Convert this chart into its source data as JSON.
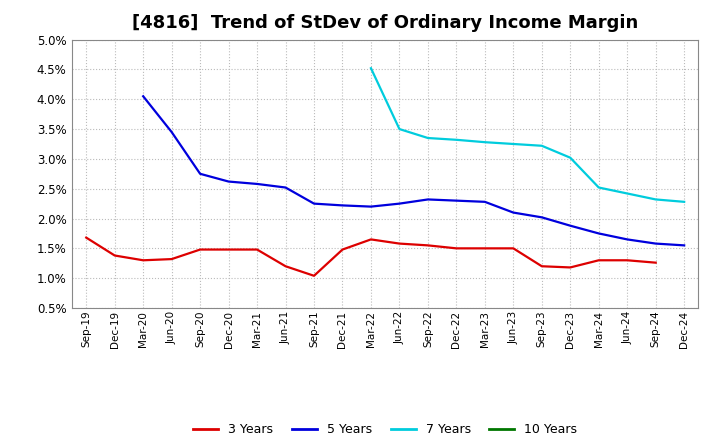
{
  "title": "[4816]  Trend of StDev of Ordinary Income Margin",
  "title_fontsize": 13,
  "background_color": "#ffffff",
  "plot_background": "#ffffff",
  "grid_color": "#aaaaaa",
  "xlabels": [
    "Sep-19",
    "Dec-19",
    "Mar-20",
    "Jun-20",
    "Sep-20",
    "Dec-20",
    "Mar-21",
    "Jun-21",
    "Sep-21",
    "Dec-21",
    "Mar-22",
    "Jun-22",
    "Sep-22",
    "Dec-22",
    "Mar-23",
    "Jun-23",
    "Sep-23",
    "Dec-23",
    "Mar-24",
    "Jun-24",
    "Sep-24",
    "Dec-24"
  ],
  "ylim": [
    0.005,
    0.05
  ],
  "yticks": [
    0.005,
    0.01,
    0.015,
    0.02,
    0.025,
    0.03,
    0.035,
    0.04,
    0.045,
    0.05
  ],
  "series": {
    "3 Years": {
      "color": "#dd0000",
      "values": [
        0.0168,
        0.0138,
        0.013,
        0.0132,
        0.0148,
        0.0148,
        0.0148,
        0.012,
        0.0104,
        0.0148,
        0.0165,
        0.0158,
        0.0155,
        0.015,
        0.015,
        0.015,
        0.012,
        0.0118,
        0.013,
        0.013,
        0.0126,
        null
      ]
    },
    "5 Years": {
      "color": "#0000dd",
      "values": [
        null,
        null,
        0.0405,
        0.0345,
        0.0275,
        0.0262,
        0.0258,
        0.0252,
        0.0225,
        0.0222,
        0.022,
        0.0225,
        0.0232,
        0.023,
        0.0228,
        0.021,
        0.0202,
        0.0188,
        0.0175,
        0.0165,
        0.0158,
        0.0155
      ]
    },
    "7 Years": {
      "color": "#00ccdd",
      "values": [
        null,
        null,
        null,
        null,
        null,
        null,
        null,
        null,
        null,
        null,
        0.0452,
        0.035,
        0.0335,
        0.0332,
        0.0328,
        0.0325,
        0.0322,
        0.0302,
        0.0252,
        0.0242,
        0.0232,
        0.0228
      ]
    },
    "10 Years": {
      "color": "#007700",
      "values": [
        null,
        null,
        null,
        null,
        null,
        null,
        null,
        null,
        null,
        null,
        null,
        null,
        null,
        null,
        null,
        null,
        null,
        null,
        null,
        null,
        null,
        null
      ]
    }
  },
  "legend_entries": [
    "3 Years",
    "5 Years",
    "7 Years",
    "10 Years"
  ],
  "legend_colors": [
    "#dd0000",
    "#0000dd",
    "#00ccdd",
    "#007700"
  ]
}
